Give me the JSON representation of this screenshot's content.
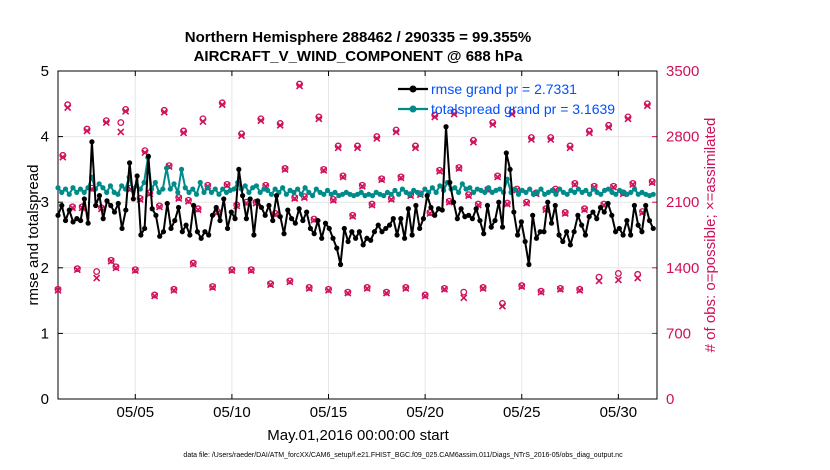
{
  "chart_data": {
    "type": "line",
    "title_line1": "Northern Hemisphere 288462 / 290335 = 99.355%",
    "title_line2": "AIRCRAFT_V_WIND_COMPONENT @ 688 hPa",
    "xlabel": "May.01,2016 00:00:00 start",
    "ylabel_left": "rmse and totalspread",
    "ylabel_right": "# of obs: o=possible; ×=assimilated",
    "xlim": [
      1,
      32
    ],
    "ylim_left": [
      0,
      5
    ],
    "ylim_right": [
      0,
      3500
    ],
    "x_ticks": [
      5,
      10,
      15,
      20,
      25,
      30
    ],
    "x_tick_labels": [
      "05/05",
      "05/10",
      "05/15",
      "05/20",
      "05/25",
      "05/30"
    ],
    "y_left_ticks": [
      0,
      1,
      2,
      3,
      4,
      5
    ],
    "y_left_tick_labels": [
      "0",
      "1",
      "2",
      "3",
      "4",
      "5"
    ],
    "y_right_ticks": [
      0,
      700,
      1400,
      2100,
      2800,
      3500
    ],
    "y_right_tick_labels": [
      "0",
      "700",
      "1400",
      "2100",
      "2800",
      "3500"
    ],
    "grid": true,
    "legend_placement": "top-right",
    "series": [
      {
        "name": "rmse grand pr = 2.7331",
        "color": "#000000",
        "marker": "filled-circle",
        "axis": "left",
        "values": [
          2.8,
          2.95,
          2.72,
          2.88,
          2.7,
          2.75,
          2.72,
          3.05,
          2.68,
          3.92,
          2.95,
          3.1,
          2.75,
          3.02,
          2.95,
          2.85,
          2.98,
          2.6,
          2.88,
          3.6,
          3.05,
          3.4,
          2.5,
          2.6,
          3.7,
          2.9,
          2.8,
          2.48,
          2.55,
          2.98,
          2.6,
          2.72,
          2.92,
          2.55,
          2.65,
          2.5,
          2.95,
          2.55,
          2.45,
          2.55,
          2.5,
          2.8,
          2.92,
          2.72,
          3.05,
          2.6,
          2.85,
          2.75,
          3.5,
          3.1,
          2.75,
          3.05,
          2.5,
          3.02,
          2.92,
          2.8,
          2.95,
          2.72,
          3.1,
          2.78,
          2.52,
          2.88,
          2.75,
          2.68,
          2.9,
          2.72,
          2.85,
          2.6,
          2.52,
          2.72,
          2.45,
          2.68,
          2.6,
          2.45,
          2.3,
          2.05,
          2.6,
          2.4,
          2.55,
          2.45,
          2.55,
          2.35,
          2.45,
          2.42,
          2.55,
          2.65,
          2.55,
          2.6,
          2.65,
          2.75,
          2.5,
          2.75,
          2.45,
          2.9,
          2.5,
          2.95,
          2.6,
          2.75,
          3.1,
          2.92,
          2.8,
          2.9,
          2.88,
          4.15,
          3.3,
          3.0,
          2.75,
          2.9,
          2.78,
          2.8,
          2.75,
          2.9,
          2.72,
          2.52,
          2.95,
          2.62,
          2.72,
          3.0,
          2.62,
          3.75,
          3.5,
          2.85,
          2.5,
          2.7,
          2.4,
          2.05,
          2.8,
          2.45,
          2.55,
          2.55,
          3.0,
          2.68,
          2.95,
          2.5,
          2.4,
          2.55,
          2.35,
          2.55,
          2.8,
          2.65,
          2.5,
          2.78,
          2.85,
          2.75,
          2.92,
          2.85,
          2.98,
          2.8,
          2.55,
          2.6,
          2.5,
          2.72,
          2.5,
          2.95,
          2.65,
          2.55,
          2.95,
          2.72,
          2.6
        ]
      },
      {
        "name": "totalspread grand pr = 3.1639",
        "color": "#008b8b",
        "marker": "filled-circle",
        "axis": "left",
        "values": [
          3.22,
          3.15,
          3.2,
          3.12,
          3.22,
          3.15,
          3.2,
          3.15,
          3.22,
          3.38,
          3.2,
          3.28,
          3.22,
          3.15,
          3.25,
          3.15,
          3.12,
          3.25,
          3.2,
          3.38,
          3.18,
          3.25,
          3.2,
          3.3,
          3.68,
          3.2,
          3.3,
          3.15,
          3.2,
          3.52,
          3.2,
          3.28,
          3.15,
          3.5,
          3.22,
          3.15,
          3.2,
          3.12,
          3.3,
          3.15,
          3.22,
          3.15,
          3.2,
          3.12,
          3.2,
          3.15,
          3.18,
          3.2,
          3.3,
          3.2,
          3.25,
          3.15,
          3.22,
          3.25,
          3.15,
          3.2,
          3.18,
          3.12,
          3.2,
          3.15,
          3.22,
          3.12,
          3.18,
          3.15,
          3.2,
          3.12,
          3.22,
          3.15,
          3.1,
          3.2,
          3.15,
          3.12,
          3.18,
          3.12,
          3.15,
          3.1,
          3.12,
          3.15,
          3.12,
          3.1,
          3.12,
          3.15,
          3.1,
          3.12,
          3.1,
          3.15,
          3.12,
          3.1,
          3.15,
          3.12,
          3.18,
          3.12,
          3.2,
          3.15,
          3.12,
          3.18,
          3.15,
          3.12,
          3.2,
          3.15,
          3.22,
          3.15,
          3.25,
          3.18,
          3.3,
          3.2,
          3.22,
          3.15,
          3.28,
          3.2,
          3.22,
          3.15,
          3.2,
          3.18,
          3.15,
          3.22,
          3.15,
          3.18,
          3.2,
          3.15,
          3.35,
          3.15,
          3.2,
          3.12,
          3.18,
          3.15,
          3.2,
          3.12,
          3.15,
          3.2,
          3.12,
          3.15,
          3.18,
          3.12,
          3.2,
          3.15,
          3.12,
          3.18,
          3.15,
          3.2,
          3.15,
          3.18,
          3.12,
          3.2,
          3.15,
          3.12,
          3.18,
          3.2,
          3.15,
          3.12,
          3.18,
          3.15,
          3.12,
          3.15,
          3.2,
          3.12,
          3.15,
          3.12,
          3.1,
          3.12
        ]
      },
      {
        "name": "possible",
        "color": "#d0105a",
        "marker": "open-circle",
        "axis": "right",
        "x": [
          1.0,
          1.25,
          1.5,
          1.75,
          2.0,
          2.25,
          2.5,
          2.75,
          3.0,
          3.25,
          3.5,
          3.75,
          4.0,
          4.25,
          4.5,
          4.75,
          5.0,
          5.25,
          5.5,
          5.75,
          6.0,
          6.25,
          6.5,
          6.75,
          7.0,
          7.25,
          7.5,
          7.75,
          8.0,
          8.25,
          8.5,
          8.75,
          9.0,
          9.25,
          9.5,
          9.75,
          10.0,
          10.25,
          10.5,
          10.75,
          11.0,
          11.25,
          11.5,
          11.75,
          12.0,
          12.25,
          12.5,
          12.75,
          13.0,
          13.25,
          13.5,
          13.75,
          14.0,
          14.25,
          14.5,
          14.75,
          15.0,
          15.25,
          15.5,
          15.75,
          16.0,
          16.25,
          16.5,
          16.75,
          17.0,
          17.25,
          17.5,
          17.75,
          18.0,
          18.25,
          18.5,
          18.75,
          19.0,
          19.25,
          19.5,
          19.75,
          20.0,
          20.25,
          20.5,
          20.75,
          21.0,
          21.25,
          21.5,
          21.75,
          22.0,
          22.25,
          22.5,
          22.75,
          23.0,
          23.25,
          23.5,
          23.75,
          24.0,
          24.25,
          24.5,
          24.75,
          25.0,
          25.25,
          25.5,
          25.75,
          26.0,
          26.25,
          26.5,
          26.75,
          27.0,
          27.25,
          27.5,
          27.75,
          28.0,
          28.25,
          28.5,
          28.75,
          29.0,
          29.25,
          29.5,
          29.75,
          30.0,
          30.25,
          30.5,
          30.75,
          31.0,
          31.25,
          31.5,
          31.75
        ],
        "values": [
          1170,
          2600,
          3140,
          2050,
          1390,
          2050,
          2880,
          2250,
          1360,
          2040,
          2970,
          1480,
          1410,
          2950,
          3090,
          2250,
          1380,
          2140,
          2650,
          2200,
          1110,
          2060,
          3080,
          2490,
          1170,
          2150,
          2860,
          2120,
          1450,
          2030,
          2990,
          2280,
          1200,
          2000,
          3160,
          2290,
          1380,
          2070,
          2830,
          2100,
          1380,
          2100,
          2990,
          2280,
          1230,
          1980,
          2940,
          2460,
          1260,
          2150,
          3360,
          2160,
          1190,
          1920,
          3010,
          2450,
          1170,
          2130,
          2700,
          2380,
          1140,
          1960,
          2700,
          2280,
          1190,
          2080,
          2800,
          2350,
          1140,
          2140,
          2870,
          2370,
          1190,
          2180,
          2700,
          2190,
          1110,
          1990,
          3030,
          2440,
          1180,
          2110,
          3060,
          2470,
          1140,
          2180,
          2760,
          2080,
          1190,
          2240,
          2950,
          2380,
          1020,
          2090,
          3060,
          2240,
          1210,
          2100,
          2790,
          2200,
          1150,
          2030,
          2790,
          2240,
          1180,
          1990,
          2700,
          2300,
          1170,
          2030,
          2860,
          2270,
          1300,
          2080,
          2920,
          2270,
          1340,
          2200,
          3010,
          2300,
          1330,
          2000,
          3150,
          2320
        ]
      },
      {
        "name": "assimilated",
        "color": "#d0105a",
        "marker": "cross",
        "axis": "right",
        "x": [
          1.0,
          1.25,
          1.5,
          1.75,
          2.0,
          2.25,
          2.5,
          2.75,
          3.0,
          3.25,
          3.5,
          3.75,
          4.0,
          4.25,
          4.5,
          4.75,
          5.0,
          5.25,
          5.5,
          5.75,
          6.0,
          6.25,
          6.5,
          6.75,
          7.0,
          7.25,
          7.5,
          7.75,
          8.0,
          8.25,
          8.5,
          8.75,
          9.0,
          9.25,
          9.5,
          9.75,
          10.0,
          10.25,
          10.5,
          10.75,
          11.0,
          11.25,
          11.5,
          11.75,
          12.0,
          12.25,
          12.5,
          12.75,
          13.0,
          13.25,
          13.5,
          13.75,
          14.0,
          14.25,
          14.5,
          14.75,
          15.0,
          15.25,
          15.5,
          15.75,
          16.0,
          16.25,
          16.5,
          16.75,
          17.0,
          17.25,
          17.5,
          17.75,
          18.0,
          18.25,
          18.5,
          18.75,
          19.0,
          19.25,
          19.5,
          19.75,
          20.0,
          20.25,
          20.5,
          20.75,
          21.0,
          21.25,
          21.5,
          21.75,
          22.0,
          22.25,
          22.5,
          22.75,
          23.0,
          23.25,
          23.5,
          23.75,
          24.0,
          24.25,
          24.5,
          24.75,
          25.0,
          25.25,
          25.5,
          25.75,
          26.0,
          26.25,
          26.5,
          26.75,
          27.0,
          27.25,
          27.5,
          27.75,
          28.0,
          28.25,
          28.5,
          28.75,
          29.0,
          29.25,
          29.5,
          29.75,
          30.0,
          30.25,
          30.5,
          30.75,
          31.0,
          31.25,
          31.5,
          31.75
        ],
        "values": [
          1160,
          2580,
          3110,
          2040,
          1380,
          2040,
          2860,
          2240,
          1290,
          2030,
          2950,
          1470,
          1400,
          2850,
          3070,
          2240,
          1370,
          2130,
          2630,
          2190,
          1100,
          2050,
          3060,
          2480,
          1160,
          2140,
          2840,
          2110,
          1440,
          2020,
          2960,
          2270,
          1190,
          1990,
          3140,
          2280,
          1370,
          2060,
          2810,
          2090,
          1370,
          2090,
          2970,
          2270,
          1220,
          1970,
          2920,
          2450,
          1250,
          2140,
          3340,
          2150,
          1180,
          1910,
          2990,
          2440,
          1160,
          2120,
          2680,
          2370,
          1130,
          1950,
          2680,
          2270,
          1180,
          2070,
          2780,
          2340,
          1130,
          2130,
          2850,
          2360,
          1180,
          2170,
          2680,
          2180,
          1100,
          1980,
          3010,
          2430,
          1170,
          2100,
          3040,
          2460,
          1080,
          2170,
          2740,
          2070,
          1180,
          2230,
          2930,
          2370,
          990,
          2080,
          3040,
          2230,
          1200,
          2090,
          2770,
          2190,
          1140,
          2020,
          2770,
          2230,
          1170,
          1980,
          2680,
          2290,
          1160,
          2020,
          2840,
          2260,
          1260,
          2070,
          2900,
          2260,
          1270,
          2190,
          2990,
          2290,
          1290,
          1990,
          3130,
          2310
        ]
      }
    ],
    "footer": "data file: /Users/raeder/DAI/ATM_forcXX/CAM6_setup/f.e21.FHIST_BGC.f09_025.CAM6assim.011/Diags_NTrS_2016-05/obs_diag_output.nc"
  }
}
